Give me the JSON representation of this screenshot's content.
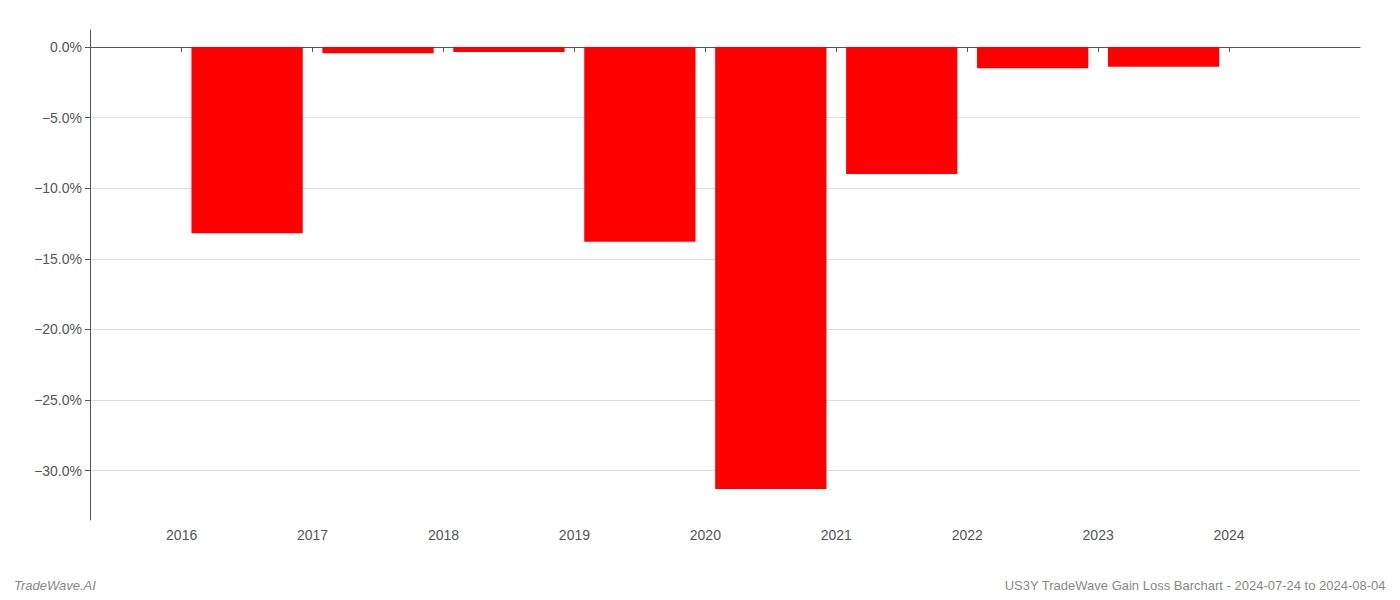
{
  "chart_data": {
    "type": "bar",
    "annotations": [
      "TradeWave.AI",
      "US3Y TradeWave Gain Loss Barchart - 2024-07-24 to 2024-08-04"
    ],
    "x": [
      2016.5,
      2017.5,
      2018.5,
      2019.5,
      2020.5,
      2021.5,
      2022.5,
      2023.5
    ],
    "values": [
      -13.2,
      -0.45,
      -0.35,
      -13.8,
      -31.3,
      -9.0,
      -1.5,
      -1.4
    ],
    "color": "#ff0000",
    "xlim": [
      2015.3,
      2025.0
    ],
    "xticks": [
      2016,
      2017,
      2018,
      2019,
      2020,
      2021,
      2022,
      2023,
      2024
    ],
    "ylim": [
      -33.5,
      1.2
    ],
    "yticks": [
      {
        "value": 0.0,
        "label": "0.0%"
      },
      {
        "value": -5.0,
        "label": "−5.0%"
      },
      {
        "value": -10.0,
        "label": "−10.0%"
      },
      {
        "value": -15.0,
        "label": "−15.0%"
      },
      {
        "value": -20.0,
        "label": "−20.0%"
      },
      {
        "value": -25.0,
        "label": "−25.0%"
      },
      {
        "value": -30.0,
        "label": "−30.0%"
      }
    ],
    "grid": true
  }
}
